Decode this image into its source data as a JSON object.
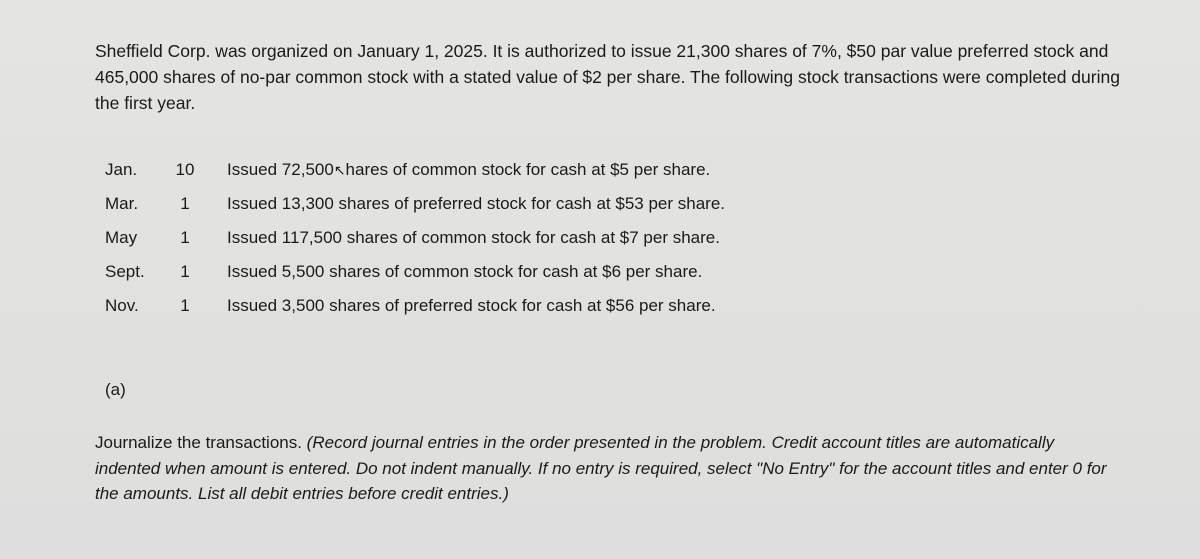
{
  "intro": "Sheffield Corp. was organized on January 1, 2025. It is authorized to issue 21,300 shares of 7%, $50 par value preferred stock and 465,000 shares of no-par common stock with a stated value of $2 per share. The following stock transactions were completed during the first year.",
  "transactions": [
    {
      "month": "Jan.",
      "day": "10",
      "desc_pre": "Issued 72,500",
      "desc_post": "hares of common stock for cash at $5 per share.",
      "has_cursor": true
    },
    {
      "month": "Mar.",
      "day": "1",
      "desc": "Issued 13,300 shares of preferred stock for cash at $53 per share."
    },
    {
      "month": "May",
      "day": "1",
      "desc": "Issued 117,500 shares of common stock for cash at $7 per share."
    },
    {
      "month": "Sept.",
      "day": "1",
      "desc": "Issued 5,500 shares of common stock for cash at $6 per share."
    },
    {
      "month": "Nov.",
      "day": "1",
      "desc": "Issued 3,500 shares of preferred stock for cash at $56 per share."
    }
  ],
  "part_label": "(a)",
  "instruction_lead": "Journalize the transactions. ",
  "instruction_italic": "(Record journal entries in the order presented in the problem. Credit account titles are automatically indented when amount is entered. Do not indent manually. If no entry is required, select \"No Entry\" for the account titles and enter 0 for the amounts. List all debit entries before credit entries.)",
  "colors": {
    "background": "#d0d0cc",
    "text": "#1a1a1a"
  },
  "typography": {
    "body_fontsize_pt": 13,
    "font_family": "Arial"
  }
}
